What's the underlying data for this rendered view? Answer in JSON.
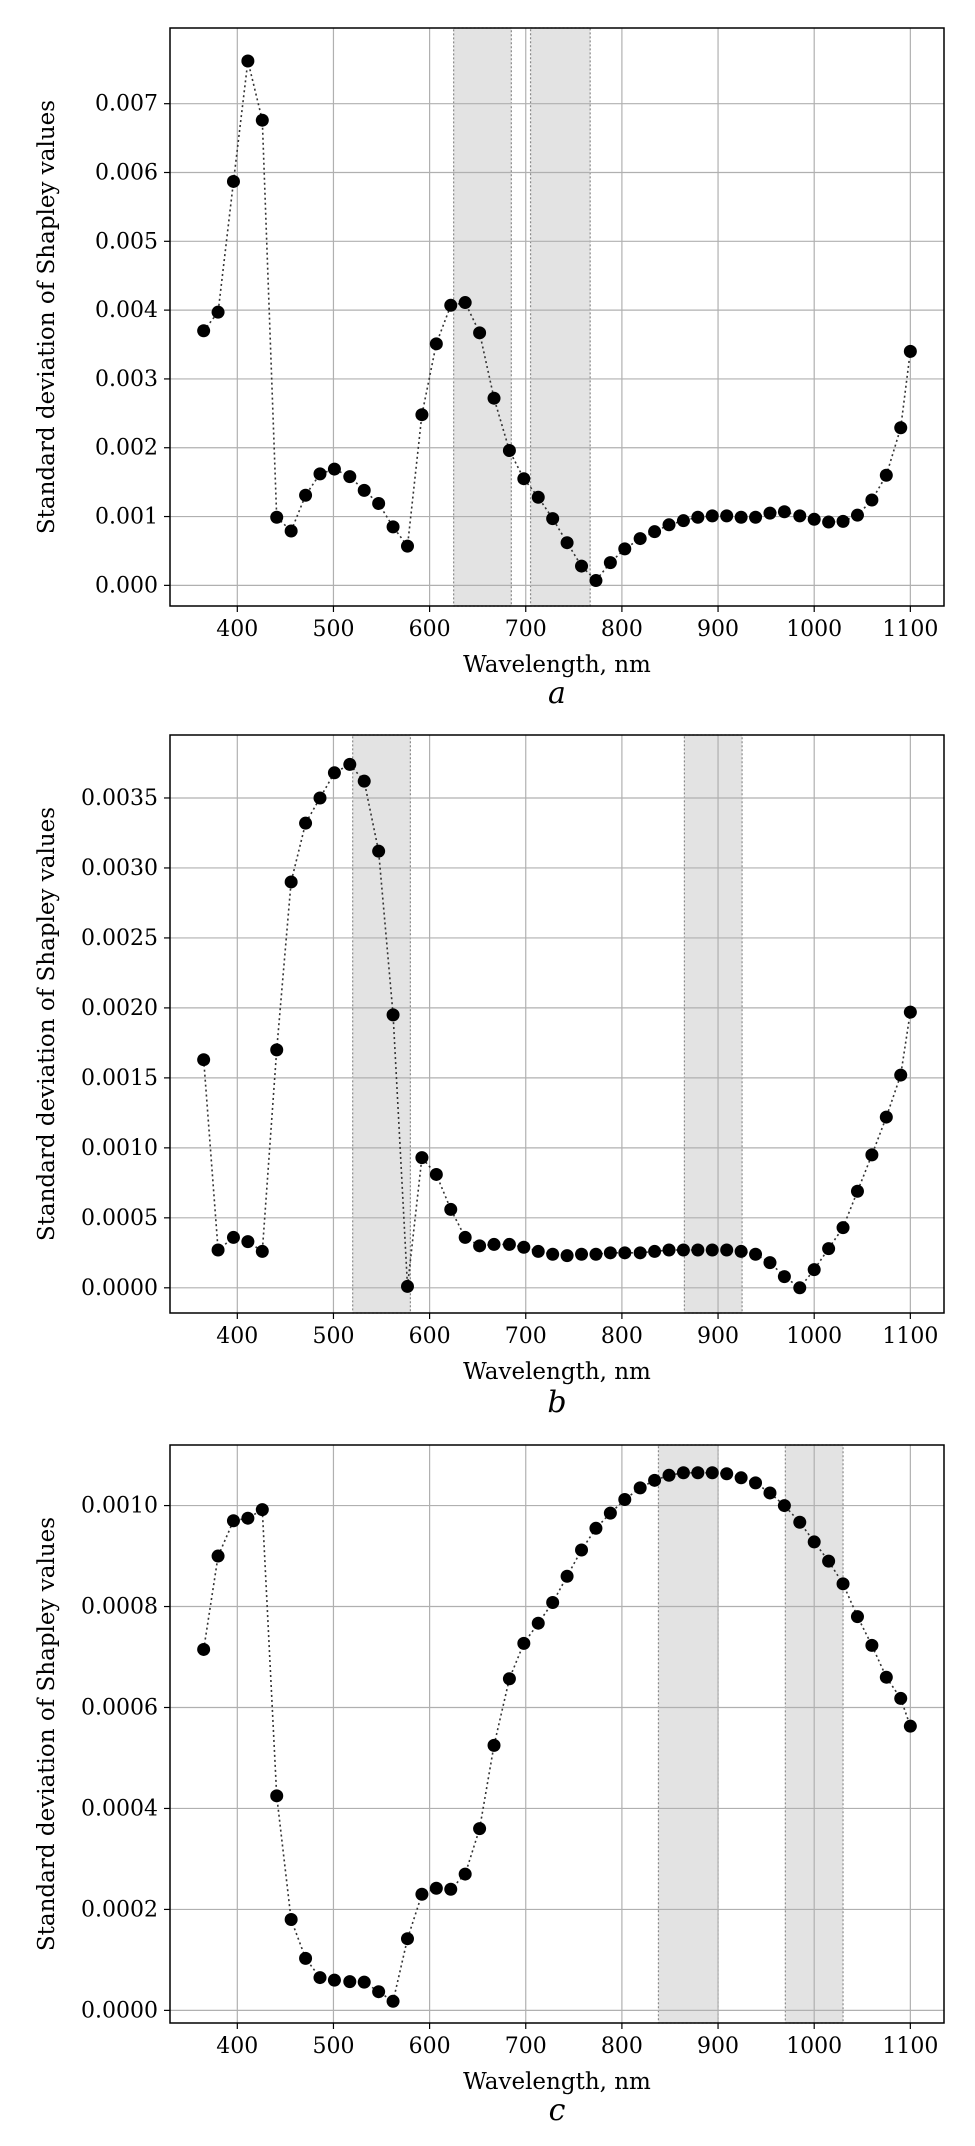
{
  "chart_data": [
    {
      "type": "scatter",
      "panel_label": "a",
      "xlabel": "Wavelength, nm",
      "ylabel": "Standard deviation of Shapley values",
      "xlim": [
        330,
        1135
      ],
      "ylim": [
        -0.0003,
        0.0081
      ],
      "xticks": [
        400,
        500,
        600,
        700,
        800,
        900,
        1000,
        1100
      ],
      "yticks": [
        0.0,
        0.001,
        0.002,
        0.003,
        0.004,
        0.005,
        0.006,
        0.007
      ],
      "ytick_labels": [
        "0.000",
        "0.001",
        "0.002",
        "0.003",
        "0.004",
        "0.005",
        "0.006",
        "0.007"
      ],
      "xtick_labels": [
        "400",
        "500",
        "600",
        "700",
        "800",
        "900",
        "1000",
        "1100"
      ],
      "grid": true,
      "line_style": "dotted",
      "highlight_bands": [
        [
          625,
          685
        ],
        [
          705,
          767
        ]
      ],
      "x": [
        365,
        380,
        396,
        411,
        426,
        441,
        456,
        471,
        486,
        501,
        517,
        532,
        547,
        562,
        577,
        592,
        607,
        622,
        637,
        652,
        667,
        683,
        698,
        713,
        728,
        743,
        758,
        773,
        788,
        803,
        819,
        834,
        849,
        864,
        879,
        894,
        909,
        924,
        939,
        954,
        969,
        985,
        1000,
        1015,
        1030,
        1045,
        1060,
        1075,
        1090,
        1100
      ],
      "y": [
        0.0037,
        0.00397,
        0.00587,
        0.00762,
        0.00676,
        0.00099,
        0.00079,
        0.00131,
        0.00162,
        0.00169,
        0.00158,
        0.00138,
        0.00119,
        0.00085,
        0.00057,
        0.00248,
        0.00351,
        0.00407,
        0.00411,
        0.00367,
        0.00272,
        0.00196,
        0.00155,
        0.00128,
        0.00097,
        0.00062,
        0.00028,
        7e-05,
        0.00033,
        0.00053,
        0.00068,
        0.00078,
        0.00088,
        0.00094,
        0.00099,
        0.00101,
        0.00101,
        0.00099,
        0.00099,
        0.00105,
        0.00107,
        0.00101,
        0.00096,
        0.00092,
        0.00093,
        0.00102,
        0.00124,
        0.0016,
        0.00229,
        0.0034
      ]
    },
    {
      "type": "scatter",
      "panel_label": "b",
      "xlabel": "Wavelength, nm",
      "ylabel": "Standard deviation of Shapley values",
      "xlim": [
        330,
        1135
      ],
      "ylim": [
        -0.00018,
        0.00395
      ],
      "xticks": [
        400,
        500,
        600,
        700,
        800,
        900,
        1000,
        1100
      ],
      "yticks": [
        0.0,
        0.0005,
        0.001,
        0.0015,
        0.002,
        0.0025,
        0.003,
        0.0035
      ],
      "ytick_labels": [
        "0.0000",
        "0.0005",
        "0.0010",
        "0.0015",
        "0.0020",
        "0.0025",
        "0.0030",
        "0.0035"
      ],
      "xtick_labels": [
        "400",
        "500",
        "600",
        "700",
        "800",
        "900",
        "1000",
        "1100"
      ],
      "grid": true,
      "line_style": "dotted",
      "highlight_bands": [
        [
          520,
          580
        ],
        [
          865,
          925
        ]
      ],
      "x": [
        365,
        380,
        396,
        411,
        426,
        441,
        456,
        471,
        486,
        501,
        517,
        532,
        547,
        562,
        577,
        592,
        607,
        622,
        637,
        652,
        667,
        683,
        698,
        713,
        728,
        743,
        758,
        773,
        788,
        803,
        819,
        834,
        849,
        864,
        879,
        894,
        909,
        924,
        939,
        954,
        969,
        985,
        1000,
        1015,
        1030,
        1045,
        1060,
        1075,
        1090,
        1100
      ],
      "y": [
        0.00163,
        0.00027,
        0.00036,
        0.00033,
        0.00026,
        0.0017,
        0.0029,
        0.00332,
        0.0035,
        0.00368,
        0.00374,
        0.00362,
        0.00312,
        0.00195,
        1e-05,
        0.00093,
        0.00081,
        0.00056,
        0.00036,
        0.0003,
        0.00031,
        0.00031,
        0.00029,
        0.00026,
        0.00024,
        0.00023,
        0.00024,
        0.00024,
        0.00025,
        0.00025,
        0.00025,
        0.00026,
        0.00027,
        0.00027,
        0.00027,
        0.00027,
        0.00027,
        0.00026,
        0.00024,
        0.00018,
        8e-05,
        0.0,
        0.00013,
        0.00028,
        0.00043,
        0.00069,
        0.00095,
        0.00122,
        0.00152,
        0.00197
      ]
    },
    {
      "type": "scatter",
      "panel_label": "c",
      "xlabel": "Wavelength, nm",
      "ylabel": "Standard deviation of Shapley values",
      "xlim": [
        330,
        1135
      ],
      "ylim": [
        -2.5e-05,
        0.00112
      ],
      "xticks": [
        400,
        500,
        600,
        700,
        800,
        900,
        1000,
        1100
      ],
      "yticks": [
        0.0,
        0.0002,
        0.0004,
        0.0006,
        0.0008,
        0.001
      ],
      "ytick_labels": [
        "0.0000",
        "0.0002",
        "0.0004",
        "0.0006",
        "0.0008",
        "0.0010"
      ],
      "xtick_labels": [
        "400",
        "500",
        "600",
        "700",
        "800",
        "900",
        "1000",
        "1100"
      ],
      "grid": true,
      "line_style": "dotted",
      "highlight_bands": [
        [
          838,
          900
        ],
        [
          970,
          1030
        ]
      ],
      "x": [
        365,
        380,
        396,
        411,
        426,
        441,
        456,
        471,
        486,
        501,
        517,
        532,
        547,
        562,
        577,
        592,
        607,
        622,
        637,
        652,
        667,
        683,
        698,
        713,
        728,
        743,
        758,
        773,
        788,
        803,
        819,
        834,
        849,
        864,
        879,
        894,
        909,
        924,
        939,
        954,
        969,
        985,
        1000,
        1015,
        1030,
        1045,
        1060,
        1075,
        1090,
        1100
      ],
      "y": [
        0.000715,
        0.0009,
        0.00097,
        0.000975,
        0.000992,
        0.000425,
        0.00018,
        0.000103,
        6.5e-05,
        6e-05,
        5.7e-05,
        5.6e-05,
        3.7e-05,
        1.8e-05,
        0.000142,
        0.00023,
        0.000242,
        0.00024,
        0.00027,
        0.00036,
        0.000525,
        0.000657,
        0.000727,
        0.000767,
        0.000808,
        0.00086,
        0.000912,
        0.000955,
        0.000985,
        0.001012,
        0.001035,
        0.00105,
        0.00106,
        0.001065,
        0.001065,
        0.001065,
        0.001063,
        0.001055,
        0.001045,
        0.001025,
        0.001,
        0.000967,
        0.000928,
        0.00089,
        0.000845,
        0.00078,
        0.000723,
        0.00066,
        0.000618,
        0.000563
      ]
    }
  ]
}
